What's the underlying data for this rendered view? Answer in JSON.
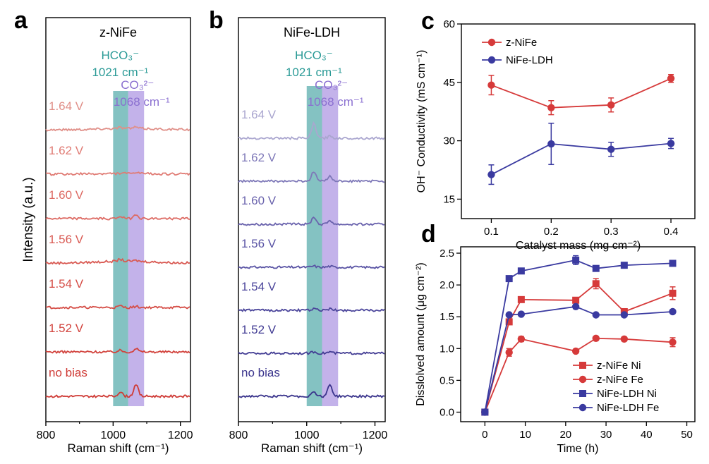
{
  "panel_letters": [
    "a",
    "b",
    "c",
    "d"
  ],
  "chart_data": [
    {
      "panel": "a",
      "type": "line",
      "title": "z-NiFe",
      "xlabel": "Raman shift (cm⁻¹)",
      "ylabel": "Intensity (a.u.)",
      "xlim": [
        800,
        1230
      ],
      "xticks": [
        800,
        1000,
        1200
      ],
      "bands": [
        {
          "label": "HCO₃⁻",
          "sub": "1021 cm⁻¹",
          "range": [
            1000,
            1045
          ],
          "color": "#6fb7b7"
        },
        {
          "label": "CO₃²⁻",
          "sub": "1068 cm⁻¹",
          "range": [
            1045,
            1092
          ],
          "color": "#b9a5e6"
        }
      ],
      "series": [
        {
          "name": "1.64 V",
          "color": "#e08f88",
          "peaks": [
            0.2,
            0.25
          ],
          "rise": 0.12
        },
        {
          "name": "1.62 V",
          "color": "#e07b74",
          "peaks": [
            0.1,
            0.25
          ],
          "rise": 0.05
        },
        {
          "name": "1.60 V",
          "color": "#dd6a63",
          "peaks": [
            0.5,
            0.9
          ],
          "rise": 0.0
        },
        {
          "name": "1.56 V",
          "color": "#d95a53",
          "peaks": [
            0.4,
            0.15
          ],
          "rise": 0.15
        },
        {
          "name": "1.54 V",
          "color": "#d54d46",
          "peaks": [
            0.3,
            0.2
          ],
          "rise": 0.0
        },
        {
          "name": "1.52 V",
          "color": "#d2433d",
          "peaks": [
            0.3,
            0.7
          ],
          "rise": 0.0
        },
        {
          "name": "no bias",
          "color": "#cf3a35",
          "peaks": [
            0.9,
            2.5
          ],
          "rise": 0.0
        }
      ]
    },
    {
      "panel": "b",
      "type": "line",
      "title": "NiFe-LDH",
      "xlabel": "Raman shift (cm⁻¹)",
      "ylabel": "",
      "xlim": [
        800,
        1230
      ],
      "xticks": [
        800,
        1000,
        1200
      ],
      "bands": [
        {
          "label": "HCO₃⁻",
          "sub": "1021 cm⁻¹",
          "range": [
            1000,
            1045
          ],
          "color": "#6fb7b7"
        },
        {
          "label": "CO₃²⁻",
          "sub": "1068 cm⁻¹",
          "range": [
            1045,
            1092
          ],
          "color": "#b9a5e6"
        }
      ],
      "series": [
        {
          "name": "1.64 V",
          "color": "#aaa6cf",
          "peaks": [
            3.0,
            0.4
          ],
          "rise": 0.0
        },
        {
          "name": "1.62 V",
          "color": "#7e78b8",
          "peaks": [
            2.0,
            1.1
          ],
          "rise": 0.0
        },
        {
          "name": "1.60 V",
          "color": "#6a63ad",
          "peaks": [
            1.5,
            0.8
          ],
          "rise": 0.0
        },
        {
          "name": "1.56 V",
          "color": "#5953a4",
          "peaks": [
            0.25,
            0.2
          ],
          "rise": 0.0
        },
        {
          "name": "1.54 V",
          "color": "#4b459b",
          "peaks": [
            0.3,
            0.3
          ],
          "rise": 0.0
        },
        {
          "name": "1.52 V",
          "color": "#413b93",
          "peaks": [
            0.3,
            0.3
          ],
          "rise": 0.0
        },
        {
          "name": "no bias",
          "color": "#3a348c",
          "peaks": [
            1.0,
            2.4
          ],
          "rise": 0.0
        }
      ]
    },
    {
      "panel": "c",
      "type": "line",
      "xlabel": "Catalyst mass (mg cm⁻²)",
      "ylabel": "OH⁻ Conductivity (mS cm⁻¹)",
      "xlim": [
        0.05,
        0.44
      ],
      "ylim": [
        10,
        60
      ],
      "xticks": [
        0.1,
        0.2,
        0.3,
        0.4
      ],
      "yticks": [
        15,
        30,
        45,
        60
      ],
      "legend": "top-left",
      "series": [
        {
          "name": "z-NiFe",
          "color": "#d63a3a",
          "marker": "circle",
          "x": [
            0.1,
            0.2,
            0.3,
            0.4
          ],
          "y": [
            44.3,
            38.5,
            39.2,
            46.0
          ],
          "err": [
            2.5,
            1.8,
            1.8,
            1.0
          ]
        },
        {
          "name": "NiFe-LDH",
          "color": "#3a3aa0",
          "marker": "circle",
          "x": [
            0.1,
            0.2,
            0.3,
            0.4
          ],
          "y": [
            21.3,
            29.2,
            27.8,
            29.3
          ],
          "err": [
            2.5,
            5.3,
            1.8,
            1.3
          ]
        }
      ]
    },
    {
      "panel": "d",
      "type": "line",
      "xlabel": "Time (h)",
      "ylabel": "Disslolved amount (μg cm⁻²)",
      "xlim": [
        -6,
        52
      ],
      "ylim": [
        -0.15,
        2.6
      ],
      "xticks": [
        0,
        10,
        20,
        30,
        40,
        50
      ],
      "yticks": [
        0.0,
        0.5,
        1.0,
        1.5,
        2.0,
        2.5
      ],
      "legend": "bottom-right",
      "series": [
        {
          "name": "z-NiFe  Ni",
          "color": "#d63a3a",
          "marker": "square",
          "x": [
            0,
            6,
            9,
            22.5,
            27.5,
            34.5,
            46.5
          ],
          "y": [
            0.0,
            1.42,
            1.77,
            1.76,
            2.02,
            1.58,
            1.87
          ],
          "err": [
            0,
            0,
            0,
            0,
            0.08,
            0,
            0.1
          ]
        },
        {
          "name": "z-NiFe  Fe",
          "color": "#d63a3a",
          "marker": "circle",
          "x": [
            0,
            6,
            9,
            22.5,
            27.5,
            34.5,
            46.5
          ],
          "y": [
            0.0,
            0.94,
            1.15,
            0.96,
            1.16,
            1.15,
            1.1
          ],
          "err": [
            0,
            0.06,
            0.04,
            0,
            0.03,
            0.03,
            0.07
          ]
        },
        {
          "name": "NiFe-LDH  Ni",
          "color": "#3a3aa0",
          "marker": "square",
          "x": [
            0,
            6,
            9,
            22.5,
            27.5,
            34.5,
            46.5
          ],
          "y": [
            0.0,
            2.1,
            2.22,
            2.39,
            2.26,
            2.31,
            2.34
          ],
          "err": [
            0,
            0,
            0.03,
            0.07,
            0,
            0,
            0
          ]
        },
        {
          "name": "NiFe-LDH  Fe",
          "color": "#3a3aa0",
          "marker": "circle",
          "x": [
            0,
            6,
            9,
            22.5,
            27.5,
            34.5,
            46.5
          ],
          "y": [
            0.0,
            1.53,
            1.54,
            1.66,
            1.53,
            1.53,
            1.58
          ],
          "err": [
            0,
            0,
            0,
            0.03,
            0,
            0,
            0
          ]
        }
      ]
    }
  ]
}
